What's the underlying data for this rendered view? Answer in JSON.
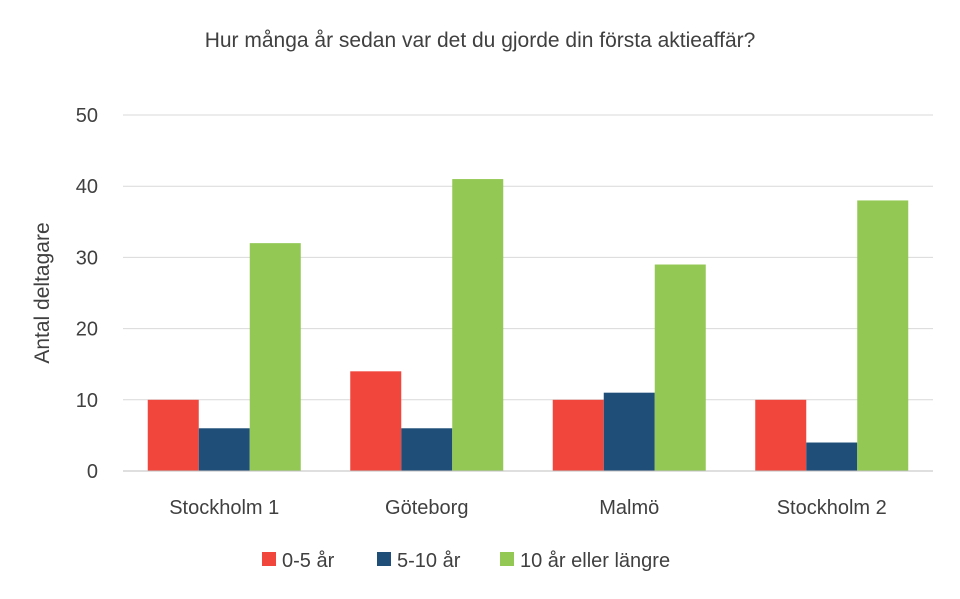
{
  "chart_data": {
    "type": "bar",
    "title": "Hur många år sedan var det du gjorde din första aktieaffär?",
    "xlabel": "",
    "ylabel": "Antal deltagare",
    "ylim": [
      0,
      50
    ],
    "yticks": [
      0,
      10,
      20,
      30,
      40,
      50
    ],
    "grid": true,
    "legend_position": "bottom",
    "categories": [
      "Stockholm 1",
      "Göteborg",
      "Malmö",
      "Stockholm 2"
    ],
    "series": [
      {
        "name": "0-5 år",
        "color": "#f0463c",
        "values": [
          10,
          14,
          10,
          10
        ]
      },
      {
        "name": "5-10 år",
        "color": "#1f4e79",
        "values": [
          6,
          6,
          11,
          4
        ]
      },
      {
        "name": "10 år eller längre",
        "color": "#92c853",
        "values": [
          32,
          41,
          29,
          38
        ]
      }
    ]
  }
}
